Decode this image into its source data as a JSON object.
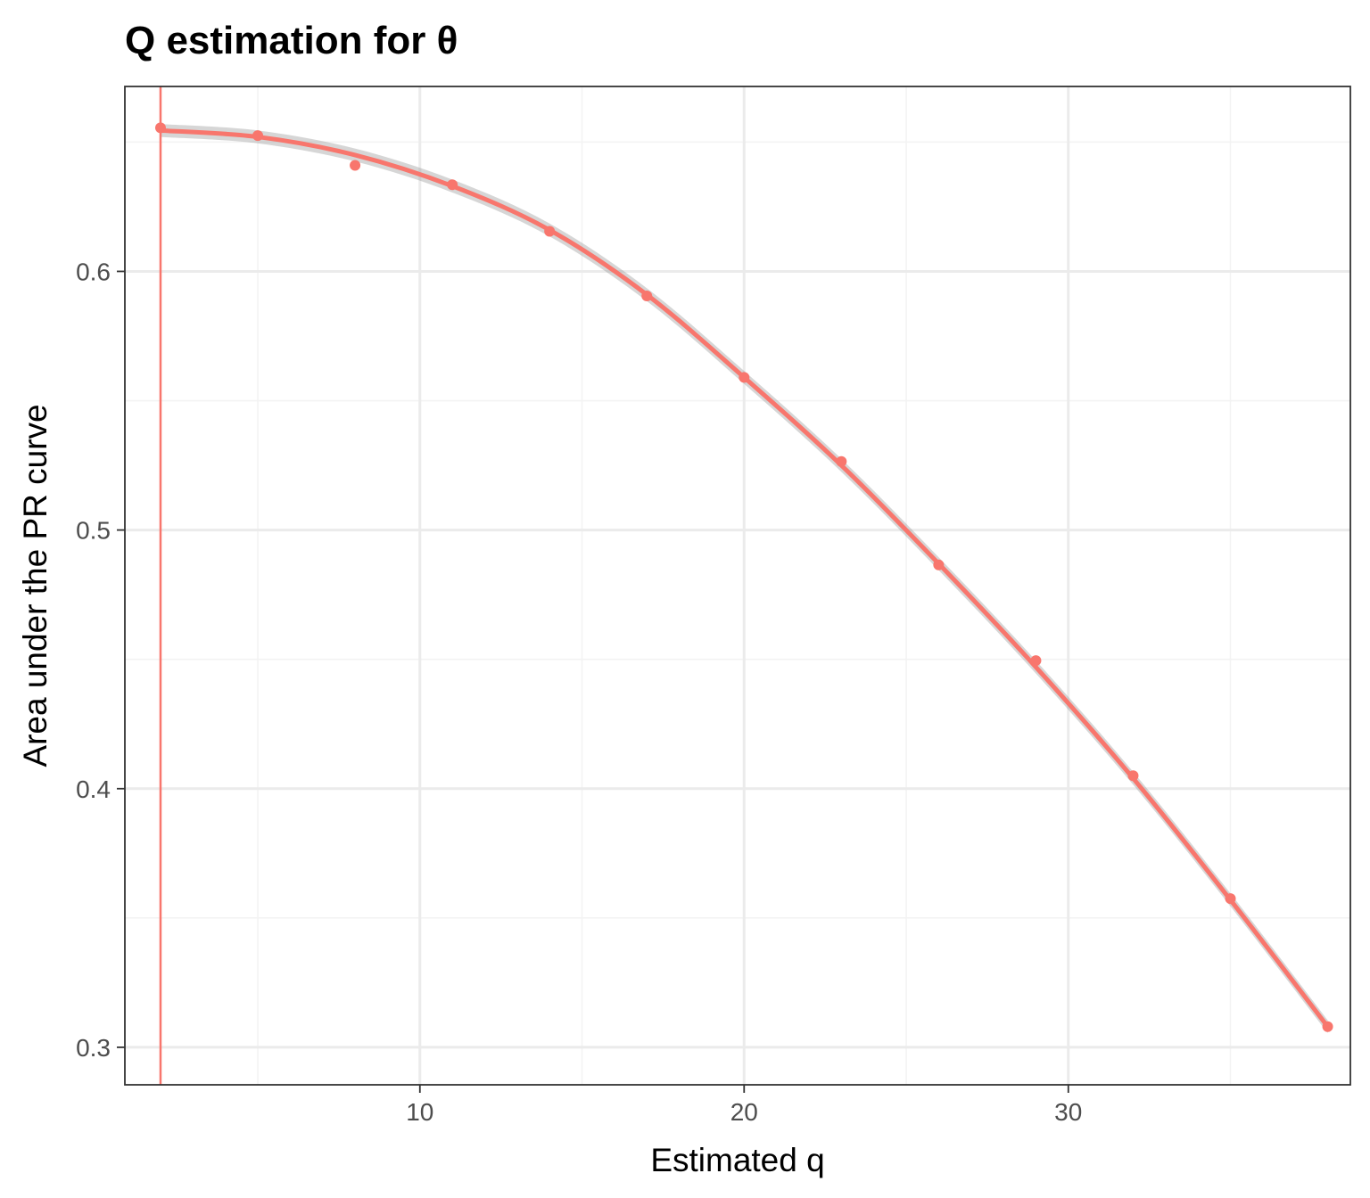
{
  "chart_data": {
    "type": "scatter",
    "title": "Q estimation for θ",
    "xlabel": "Estimated q",
    "ylabel": "Area under the PR curve",
    "xlim": [
      0.9,
      38.7
    ],
    "ylim": [
      0.2855,
      0.6715
    ],
    "x_ticks": [
      10,
      20,
      30
    ],
    "x_tick_labels": [
      "10",
      "20",
      "30"
    ],
    "y_ticks": [
      0.3,
      0.4,
      0.5,
      0.6
    ],
    "y_tick_labels": [
      "0.3",
      "0.4",
      "0.5",
      "0.6"
    ],
    "x_minor_gridlines": [
      5,
      15,
      25,
      35
    ],
    "y_minor_gridlines": [
      0.35,
      0.45,
      0.55,
      0.65
    ],
    "grid": true,
    "theme": "bw",
    "points": {
      "x": [
        2,
        5,
        8,
        11,
        14,
        17,
        20,
        23,
        26,
        29,
        32,
        35,
        38
      ],
      "y": [
        0.6555,
        0.6525,
        0.641,
        0.6335,
        0.6155,
        0.5905,
        0.559,
        0.5265,
        0.4865,
        0.4495,
        0.405,
        0.3575,
        0.308
      ]
    },
    "smooth": {
      "method": "quadratic fit",
      "x": [
        2,
        5,
        8,
        11,
        14,
        17,
        20,
        23,
        26,
        29,
        32,
        35,
        38
      ],
      "y": [
        0.6545,
        0.652,
        0.645,
        0.633,
        0.616,
        0.591,
        0.559,
        0.525,
        0.487,
        0.447,
        0.404,
        0.357,
        0.308
      ],
      "ci_halfwidth": 0.0025
    },
    "vline_x": 2,
    "colors": {
      "series": "#F8766D",
      "ribbon": "#999999",
      "grid_major": "#ebebeb",
      "grid_minor": "#f3f3f3",
      "panel_border": "#333333",
      "tick_label": "#4d4d4d"
    }
  }
}
